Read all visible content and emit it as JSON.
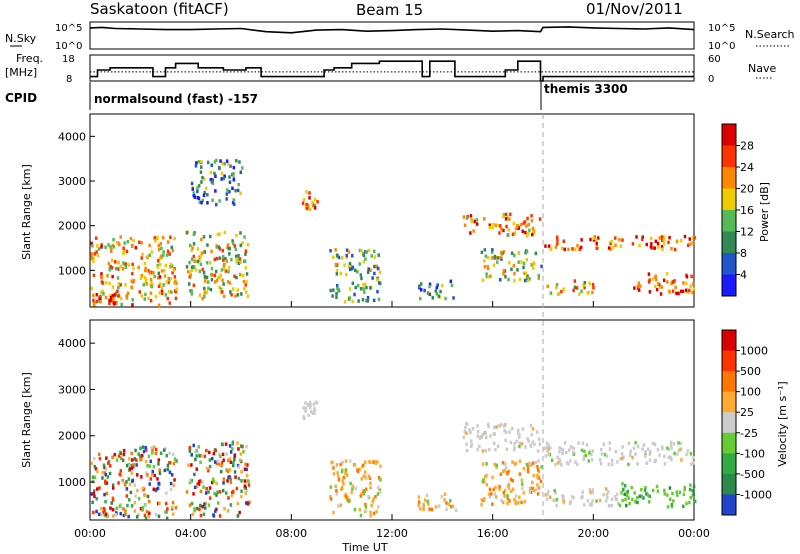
{
  "header": {
    "station": "Saskatoon (fitACF)",
    "beam": "Beam 15",
    "date": "01/Nov/2011"
  },
  "chart_data": [
    {
      "type": "line",
      "panel": "N.Sky / N.Search",
      "left_label": "N.Sky",
      "right_label": "N.Search",
      "left_ticks": [
        "10^5",
        "10^0"
      ],
      "right_ticks": [
        "10^5",
        "10^0"
      ],
      "x_hours": [
        0,
        0.5,
        1,
        2,
        3,
        4,
        5,
        6,
        7,
        8,
        9,
        10,
        11,
        12,
        13,
        14,
        15,
        16,
        17,
        17.9,
        18,
        19,
        20,
        21,
        22,
        23,
        24
      ],
      "log_nsky": [
        3.9,
        4.0,
        3.8,
        3.7,
        3.6,
        3.6,
        3.7,
        3.8,
        3.2,
        3.0,
        3.5,
        3.6,
        3.3,
        3.4,
        3.6,
        3.7,
        3.5,
        3.3,
        3.4,
        3.2,
        4.0,
        4.1,
        3.9,
        3.8,
        3.7,
        3.9,
        3.6
      ]
    },
    {
      "type": "line",
      "panel": "Freq / Nave",
      "left_label_1": "Freq.",
      "left_label_2": "[MHz]",
      "right_label": "Nave",
      "left_ticks": [
        "18",
        "8"
      ],
      "right_ticks": [
        "60",
        "0"
      ],
      "steps": [
        {
          "x": [
            0,
            0.3
          ],
          "freq_mhz": 10
        },
        {
          "x": [
            0.3,
            0.8
          ],
          "freq_mhz": 13
        },
        {
          "x": [
            0.8,
            2.5
          ],
          "freq_mhz": 14
        },
        {
          "x": [
            2.5,
            3.0
          ],
          "freq_mhz": 10
        },
        {
          "x": [
            3.0,
            3.4
          ],
          "freq_mhz": 14
        },
        {
          "x": [
            3.4,
            4.3
          ],
          "freq_mhz": 16
        },
        {
          "x": [
            4.3,
            5.3
          ],
          "freq_mhz": 14
        },
        {
          "x": [
            5.3,
            6.2
          ],
          "freq_mhz": 13
        },
        {
          "x": [
            6.2,
            6.8
          ],
          "freq_mhz": 14
        },
        {
          "x": [
            6.8,
            9.3
          ],
          "freq_mhz": 10
        },
        {
          "x": [
            9.3,
            9.7
          ],
          "freq_mhz": 13
        },
        {
          "x": [
            9.7,
            10.4
          ],
          "freq_mhz": 14
        },
        {
          "x": [
            10.4,
            11.5
          ],
          "freq_mhz": 16
        },
        {
          "x": [
            11.5,
            12.0
          ],
          "freq_mhz": 17
        },
        {
          "x": [
            12.0,
            13.2
          ],
          "freq_mhz": 17
        },
        {
          "x": [
            13.2,
            13.5
          ],
          "freq_mhz": 10
        },
        {
          "x": [
            13.5,
            14.5
          ],
          "freq_mhz": 17
        },
        {
          "x": [
            14.5,
            16.5
          ],
          "freq_mhz": 10
        },
        {
          "x": [
            16.5,
            17.0
          ],
          "freq_mhz": 13
        },
        {
          "x": [
            17.0,
            17.9
          ],
          "freq_mhz": 17
        },
        {
          "x": [
            17.9,
            18.0
          ],
          "freq_mhz": 8
        },
        {
          "x": [
            18.0,
            24.0
          ],
          "freq_mhz": 10
        }
      ],
      "nave_level": 25
    },
    {
      "type": "table",
      "panel": "CPID",
      "label": "CPID",
      "segments": [
        {
          "name": "normalsound (fast) -157",
          "x_start_hour": 0
        },
        {
          "name": "themis 3300",
          "x_start_hour": 18
        }
      ]
    },
    {
      "type": "heatmap",
      "panel": "Power",
      "ylabel": "Slant Range [km]",
      "yticks": [
        1000,
        2000,
        3000,
        4000
      ],
      "ylim": [
        180,
        4500
      ],
      "xlim": [
        0,
        24
      ],
      "colorbar_label": "Power [dB]",
      "colorbar_ticks": [
        4,
        8,
        12,
        16,
        20,
        24,
        28
      ],
      "colorbar_colors": [
        "#1a1aff",
        "#2255cc",
        "#338855",
        "#55bb55",
        "#eecc00",
        "#ff8800",
        "#ff3300",
        "#dd0000"
      ],
      "clusters": [
        {
          "t0": 0.0,
          "t1": 3.4,
          "r0": 250,
          "r1": 1800,
          "intensity": 0.65
        },
        {
          "t0": 0.0,
          "t1": 1.0,
          "r0": 250,
          "r1": 500,
          "intensity": 0.9
        },
        {
          "t0": 3.8,
          "t1": 6.3,
          "r0": 400,
          "r1": 1900,
          "intensity": 0.55
        },
        {
          "t0": 4.0,
          "t1": 6.0,
          "r0": 2500,
          "r1": 3500,
          "intensity": 0.25
        },
        {
          "t0": 8.4,
          "t1": 9.0,
          "r0": 2400,
          "r1": 2800,
          "intensity": 0.7
        },
        {
          "t0": 9.5,
          "t1": 11.5,
          "r0": 300,
          "r1": 1500,
          "intensity": 0.4
        },
        {
          "t0": 13.0,
          "t1": 14.5,
          "r0": 400,
          "r1": 800,
          "intensity": 0.3
        },
        {
          "t0": 14.8,
          "t1": 17.9,
          "r0": 1800,
          "r1": 2300,
          "intensity": 0.75
        },
        {
          "t0": 15.5,
          "t1": 17.9,
          "r0": 800,
          "r1": 1500,
          "intensity": 0.45
        },
        {
          "t0": 18.0,
          "t1": 24.0,
          "r0": 1500,
          "r1": 1800,
          "intensity": 0.8
        },
        {
          "t0": 18.0,
          "t1": 20.0,
          "r0": 500,
          "r1": 800,
          "intensity": 0.6
        },
        {
          "t0": 21.5,
          "t1": 24.0,
          "r0": 500,
          "r1": 1000,
          "intensity": 0.85
        }
      ]
    },
    {
      "type": "heatmap",
      "panel": "Velocity",
      "ylabel": "Slant Range [km]",
      "yticks": [
        1000,
        2000,
        3000,
        4000
      ],
      "ylim": [
        180,
        4500
      ],
      "xlim": [
        0,
        24
      ],
      "xticks": [
        "00:00",
        "04:00",
        "08:00",
        "12:00",
        "16:00",
        "20:00",
        "00:00"
      ],
      "xlabel": "Time UT",
      "colorbar_label": "Velocity [m s⁻¹]",
      "colorbar_ticks": [
        1000,
        500,
        100,
        25,
        -25,
        -100,
        -500,
        -1000
      ],
      "colorbar_colors": [
        "#2244cc",
        "#2a8a4a",
        "#33aa44",
        "#66cc33",
        "#cccccc",
        "#ffaa33",
        "#ff7700",
        "#ff3300",
        "#dd0000"
      ],
      "clusters": [
        {
          "t0": 0.0,
          "t1": 3.4,
          "r0": 250,
          "r1": 1800,
          "kind": "mixed"
        },
        {
          "t0": 3.8,
          "t1": 6.3,
          "r0": 300,
          "r1": 1900,
          "kind": "mixed"
        },
        {
          "t0": 8.4,
          "t1": 9.0,
          "r0": 2400,
          "r1": 2800,
          "kind": "grey"
        },
        {
          "t0": 9.5,
          "t1": 11.5,
          "r0": 300,
          "r1": 1500,
          "kind": "orange"
        },
        {
          "t0": 13.0,
          "t1": 14.5,
          "r0": 400,
          "r1": 800,
          "kind": "orange"
        },
        {
          "t0": 14.8,
          "t1": 17.9,
          "r0": 1700,
          "r1": 2300,
          "kind": "grey"
        },
        {
          "t0": 15.5,
          "t1": 17.9,
          "r0": 500,
          "r1": 1500,
          "kind": "orange"
        },
        {
          "t0": 18.0,
          "t1": 24.0,
          "r0": 1400,
          "r1": 1900,
          "kind": "grey"
        },
        {
          "t0": 18.0,
          "t1": 21.0,
          "r0": 500,
          "r1": 900,
          "kind": "grey"
        },
        {
          "t0": 21.0,
          "t1": 24.0,
          "r0": 500,
          "r1": 1000,
          "kind": "green"
        }
      ]
    }
  ]
}
